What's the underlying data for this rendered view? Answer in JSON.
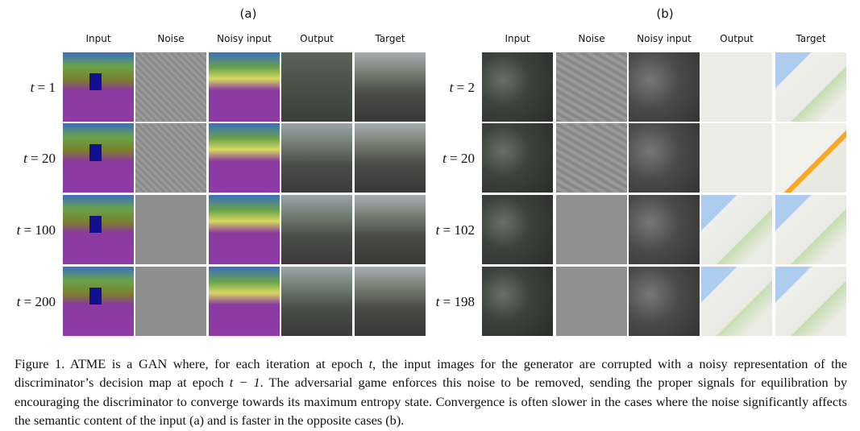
{
  "panels": [
    {
      "label": "(a)",
      "columns": [
        "Input",
        "Noise",
        "Noisy input",
        "Output",
        "Target"
      ],
      "rows": [
        "1",
        "20",
        "100",
        "200"
      ]
    },
    {
      "label": "(b)",
      "columns": [
        "Input",
        "Noise",
        "Noisy input",
        "Output",
        "Target"
      ],
      "rows": [
        "2",
        "20",
        "102",
        "198"
      ]
    }
  ],
  "row_label_prefix": "t",
  "row_label_eq": " = ",
  "caption": {
    "part1": "Figure 1. ATME is a GAN where, for each iteration at epoch ",
    "var_t": "t",
    "part2": ", the input images for the generator are corrupted with a noisy representation of the discriminator’s decision map at epoch ",
    "math_t_minus_1": "t − 1",
    "part3": ". The adversarial game enforces this noise to be removed, sending the proper signals for equilibration by encouraging the discriminator to converge towards its maximum entropy state.  Convergence is often slower in the cases where the noise significantly affects the semantic content of the input (a) and is faster in the opposite cases (b)."
  }
}
